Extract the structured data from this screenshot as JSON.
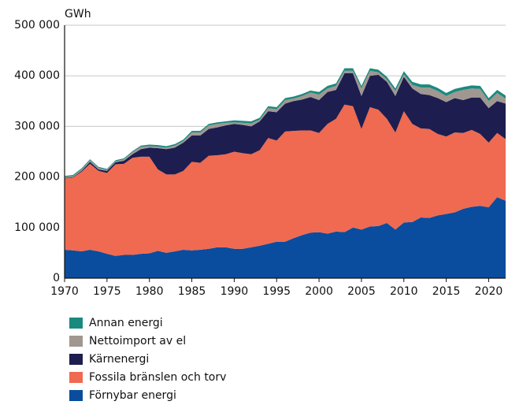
{
  "chart_data": {
    "type": "stacked_area",
    "y_label": "GWh",
    "x": [
      1970,
      1971,
      1972,
      1973,
      1974,
      1975,
      1976,
      1977,
      1978,
      1979,
      1980,
      1981,
      1982,
      1983,
      1984,
      1985,
      1986,
      1987,
      1988,
      1989,
      1990,
      1991,
      1992,
      1993,
      1994,
      1995,
      1996,
      1997,
      1998,
      1999,
      2000,
      2001,
      2002,
      2003,
      2004,
      2005,
      2006,
      2007,
      2008,
      2009,
      2010,
      2011,
      2012,
      2013,
      2014,
      2015,
      2016,
      2017,
      2018,
      2019,
      2020,
      2021,
      2022
    ],
    "xlim": [
      1970,
      2022
    ],
    "xticks": [
      1970,
      1975,
      1980,
      1985,
      1990,
      1995,
      2000,
      2005,
      2010,
      2015,
      2020
    ],
    "ylim": [
      0,
      500000
    ],
    "yticks": [
      0,
      {
        "value": 100000,
        "label": "100 000"
      },
      {
        "value": 200000,
        "label": "200 000"
      },
      {
        "value": 300000,
        "label": "300 000"
      },
      {
        "value": 400000,
        "label": "400 000"
      },
      {
        "value": 500000,
        "label": "500 000"
      }
    ],
    "grid": true,
    "series": [
      {
        "name": "Förnybar energi",
        "color": "#0a4d9e",
        "values": [
          56000,
          55000,
          53000,
          56000,
          53000,
          48000,
          44000,
          46000,
          46000,
          48000,
          49000,
          54000,
          50000,
          53000,
          56000,
          55000,
          56000,
          58000,
          61000,
          61000,
          58000,
          58000,
          61000,
          64000,
          68000,
          72000,
          72000,
          79000,
          85000,
          90000,
          91000,
          88000,
          92000,
          91000,
          100000,
          96000,
          102000,
          103000,
          109000,
          96000,
          110000,
          111000,
          120000,
          119000,
          124000,
          127000,
          130000,
          137000,
          141000,
          143000,
          140000,
          160000,
          153000
        ]
      },
      {
        "name": "Fossila bränslen och torv",
        "color": "#ef6a50",
        "values": [
          141000,
          144000,
          157000,
          170000,
          159000,
          160000,
          181000,
          180000,
          192000,
          192000,
          191000,
          161000,
          155000,
          152000,
          156000,
          175000,
          172000,
          184000,
          182000,
          184000,
          192000,
          189000,
          184000,
          189000,
          209000,
          200000,
          218000,
          212000,
          207000,
          202000,
          196000,
          217000,
          223000,
          252000,
          240000,
          199000,
          236000,
          230000,
          206000,
          192000,
          220000,
          194000,
          176000,
          176000,
          161000,
          153000,
          158000,
          150000,
          152000,
          142000,
          128000,
          127000,
          122000
        ]
      },
      {
        "name": "Kärnenergi",
        "color": "#1d1d4f",
        "values": [
          1000,
          1000,
          2000,
          4000,
          3000,
          4000,
          4000,
          6000,
          7000,
          15000,
          18000,
          42000,
          50000,
          53000,
          56000,
          52000,
          54000,
          53000,
          55000,
          57000,
          55000,
          56000,
          55000,
          57000,
          53000,
          56000,
          55000,
          59000,
          61000,
          66000,
          65000,
          63000,
          57000,
          62000,
          65000,
          65000,
          62000,
          69000,
          73000,
          72000,
          68000,
          70000,
          68000,
          67000,
          71000,
          68000,
          68000,
          65000,
          64000,
          72000,
          68000,
          63000,
          70000
        ]
      },
      {
        "name": "Nettoimport av el",
        "color": "#a09791",
        "values": [
          2000,
          2000,
          3000,
          3000,
          3000,
          2000,
          2000,
          3000,
          4000,
          5000,
          3000,
          3000,
          3000,
          4000,
          3000,
          6000,
          6000,
          7000,
          7000,
          5000,
          3000,
          4000,
          6000,
          3000,
          6000,
          6000,
          7000,
          5000,
          7000,
          9000,
          11000,
          7000,
          8000,
          5000,
          5000,
          15000,
          10000,
          5000,
          5000,
          10000,
          5000,
          7000,
          13000,
          15000,
          14000,
          12000,
          12000,
          20000,
          18000,
          17000,
          14000,
          16000,
          10000
        ]
      },
      {
        "name": "Annan energi",
        "color": "#1a8a7f",
        "values": [
          2000,
          2000,
          2000,
          2000,
          2000,
          2000,
          2000,
          2000,
          2000,
          2000,
          3000,
          3000,
          3000,
          3000,
          3000,
          3000,
          3000,
          3000,
          3000,
          3000,
          4000,
          4000,
          4000,
          4000,
          4000,
          4000,
          4000,
          4000,
          4000,
          4000,
          5000,
          5000,
          5000,
          5000,
          5000,
          5000,
          5000,
          5000,
          5000,
          5000,
          6000,
          6000,
          6000,
          6000,
          6000,
          6000,
          6000,
          6000,
          6000,
          6000,
          6000,
          6000,
          6000
        ]
      }
    ]
  }
}
